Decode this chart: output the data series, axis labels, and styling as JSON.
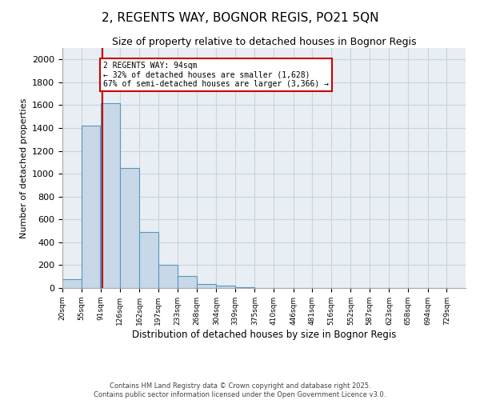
{
  "title1": "2, REGENTS WAY, BOGNOR REGIS, PO21 5QN",
  "title2": "Size of property relative to detached houses in Bognor Regis",
  "xlabel": "Distribution of detached houses by size in Bognor Regis",
  "ylabel": "Number of detached properties",
  "bar_edges": [
    20,
    55,
    91,
    126,
    162,
    197,
    233,
    268,
    304,
    339,
    375,
    410,
    446,
    481,
    516,
    552,
    587,
    623,
    658,
    694,
    729
  ],
  "bar_heights": [
    75,
    1420,
    1620,
    1050,
    490,
    205,
    105,
    35,
    20,
    8,
    3,
    2,
    1,
    1,
    0,
    0,
    0,
    0,
    0,
    0
  ],
  "bar_color": "#c8d8e8",
  "bar_edge_color": "#5599bb",
  "red_line_x": 94,
  "ylim": [
    0,
    2100
  ],
  "yticks": [
    0,
    200,
    400,
    600,
    800,
    1000,
    1200,
    1400,
    1600,
    1800,
    2000
  ],
  "annotation_title": "2 REGENTS WAY: 94sqm",
  "annotation_line1": "← 32% of detached houses are smaller (1,628)",
  "annotation_line2": "67% of semi-detached houses are larger (3,366) →",
  "annotation_box_color": "#cc0000",
  "grid_color": "#c8d4de",
  "bg_color": "#e8eef4",
  "footer1": "Contains HM Land Registry data © Crown copyright and database right 2025.",
  "footer2": "Contains public sector information licensed under the Open Government Licence v3.0."
}
